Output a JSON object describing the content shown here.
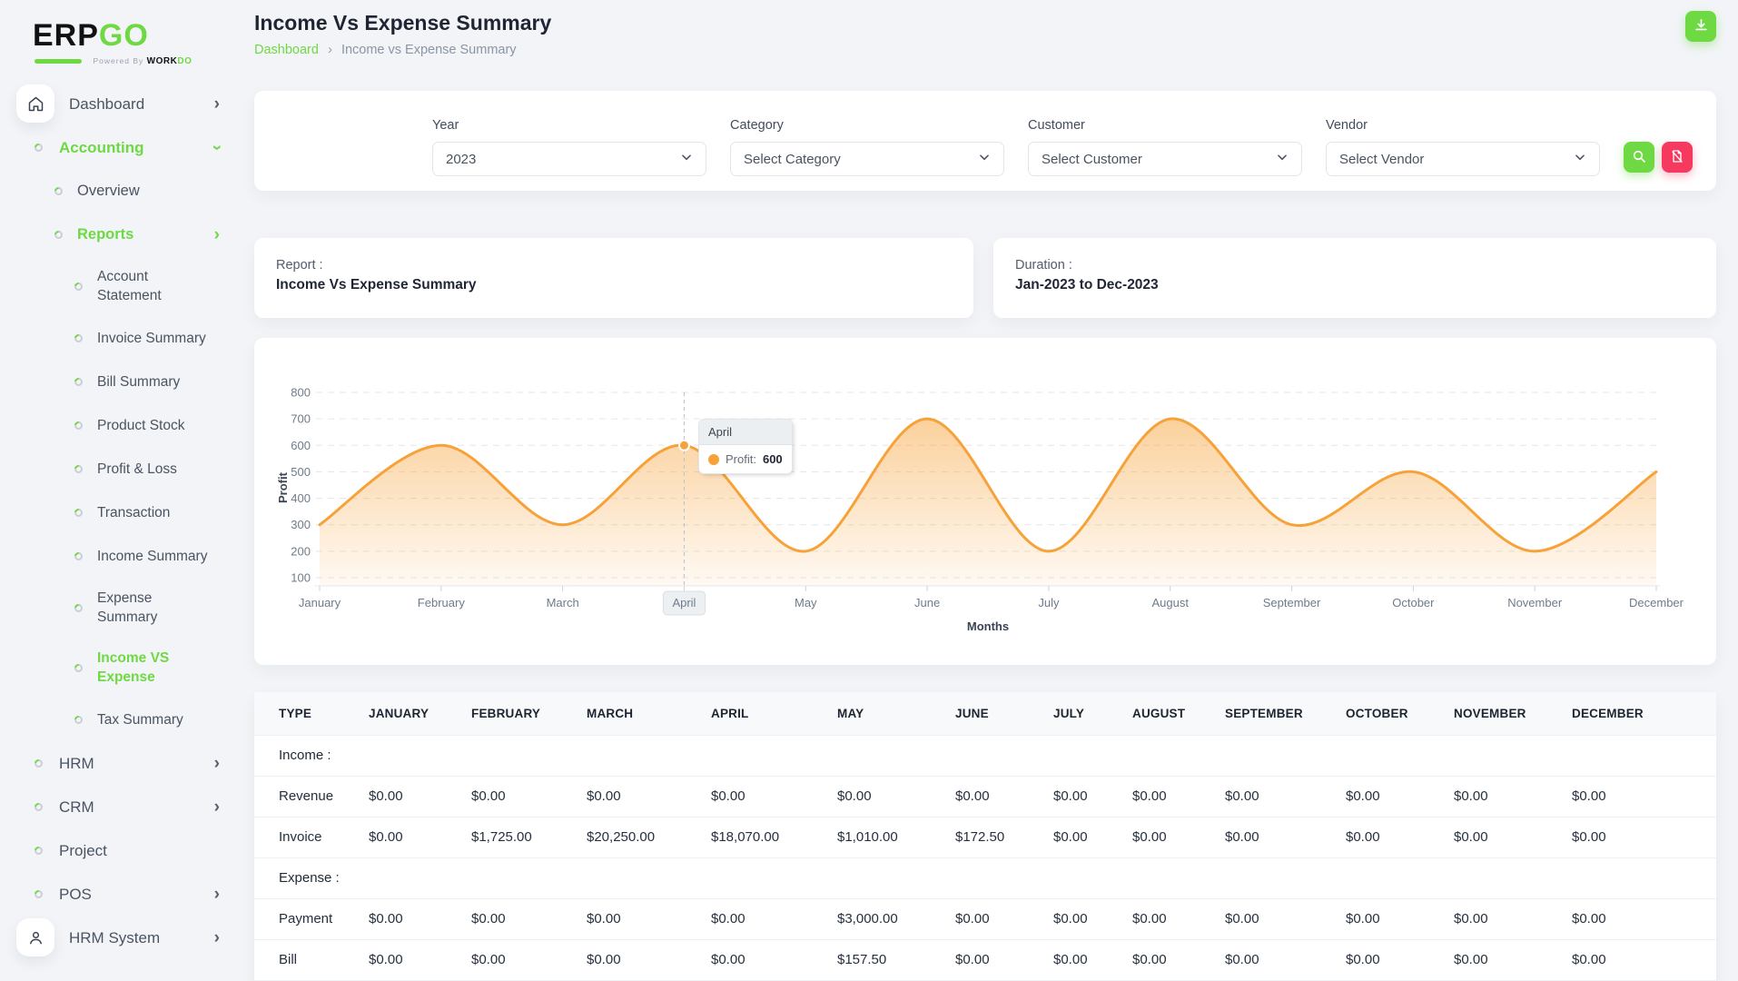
{
  "app": {
    "logo_part1": "ERP",
    "logo_part2": "GO",
    "powered_by": "Powered By",
    "powered_brand": "WORK",
    "powered_brand2": "DO"
  },
  "header": {
    "title": "Income Vs Expense Summary",
    "breadcrumb": [
      "Dashboard",
      "Income vs Expense Summary"
    ]
  },
  "icons": [
    "home-icon",
    "download-icon",
    "search-icon",
    "file-slash-icon",
    "user-icon",
    "chevron-right-icon",
    "chevron-down-icon"
  ],
  "sidebar": {
    "items": [
      {
        "label": "Dashboard",
        "level": 0,
        "icon": "home",
        "chevron": "right"
      },
      {
        "label": "Accounting",
        "level": 0,
        "bullet": true,
        "chevron": "down",
        "active": true
      },
      {
        "label": "Overview",
        "level": 1,
        "bullet": true
      },
      {
        "label": "Reports",
        "level": 1,
        "bullet": true,
        "chevron": "right",
        "active": true
      },
      {
        "label": "Account Statement",
        "level": 2,
        "bullet": true,
        "twoLine": true
      },
      {
        "label": "Invoice Summary",
        "level": 2,
        "bullet": true
      },
      {
        "label": "Bill Summary",
        "level": 2,
        "bullet": true
      },
      {
        "label": "Product Stock",
        "level": 2,
        "bullet": true
      },
      {
        "label": "Profit & Loss",
        "level": 2,
        "bullet": true
      },
      {
        "label": "Transaction",
        "level": 2,
        "bullet": true
      },
      {
        "label": "Income Summary",
        "level": 2,
        "bullet": true
      },
      {
        "label": "Expense Summary",
        "level": 2,
        "bullet": true,
        "twoLine": true
      },
      {
        "label": "Income VS Expense",
        "level": 2,
        "bullet": true,
        "twoLine": true,
        "active": true
      },
      {
        "label": "Tax Summary",
        "level": 2,
        "bullet": true
      },
      {
        "label": "HRM",
        "level": 0,
        "bullet": true,
        "chevron": "right"
      },
      {
        "label": "CRM",
        "level": 0,
        "bullet": true,
        "chevron": "right"
      },
      {
        "label": "Project",
        "level": 0,
        "bullet": true
      },
      {
        "label": "POS",
        "level": 0,
        "bullet": true,
        "chevron": "right"
      },
      {
        "label": "HRM System",
        "level": 0,
        "icon": "user",
        "chevron": "right"
      }
    ]
  },
  "filters": {
    "year": {
      "label": "Year",
      "value": "2023"
    },
    "category": {
      "label": "Category",
      "value": "Select Category"
    },
    "customer": {
      "label": "Customer",
      "value": "Select Customer"
    },
    "vendor": {
      "label": "Vendor",
      "value": "Select Vendor"
    }
  },
  "report_card": {
    "label": "Report :",
    "value": "Income Vs Expense Summary"
  },
  "duration_card": {
    "label": "Duration :",
    "value": "Jan-2023 to Dec-2023"
  },
  "chart_data": {
    "type": "area",
    "categories": [
      "January",
      "February",
      "March",
      "April",
      "May",
      "June",
      "July",
      "August",
      "September",
      "October",
      "November",
      "December"
    ],
    "series": [
      {
        "name": "Profit",
        "values": [
          300,
          600,
          300,
          600,
          200,
          700,
          200,
          700,
          300,
          500,
          200,
          500
        ]
      }
    ],
    "xlabel": "Months",
    "ylabel": "Profit",
    "ylim": [
      100,
      800
    ],
    "yticks": [
      800,
      700,
      600,
      500,
      400,
      300,
      200,
      100
    ],
    "grid": "dashed-horizontal",
    "legend": "none",
    "line_color": "#f7a239",
    "selected_point": {
      "category": "April",
      "index": 3,
      "series": "Profit",
      "value": "600"
    }
  },
  "table": {
    "columns": [
      "TYPE",
      "JANUARY",
      "FEBRUARY",
      "MARCH",
      "APRIL",
      "MAY",
      "JUNE",
      "JULY",
      "AUGUST",
      "SEPTEMBER",
      "OCTOBER",
      "NOVEMBER",
      "DECEMBER"
    ],
    "sections": [
      {
        "label": "Income :",
        "rows": [
          {
            "type": "Revenue",
            "values": [
              "$0.00",
              "$0.00",
              "$0.00",
              "$0.00",
              "$0.00",
              "$0.00",
              "$0.00",
              "$0.00",
              "$0.00",
              "$0.00",
              "$0.00",
              "$0.00"
            ]
          },
          {
            "type": "Invoice",
            "values": [
              "$0.00",
              "$1,725.00",
              "$20,250.00",
              "$18,070.00",
              "$1,010.00",
              "$172.50",
              "$0.00",
              "$0.00",
              "$0.00",
              "$0.00",
              "$0.00",
              "$0.00"
            ]
          }
        ]
      },
      {
        "label": "Expense :",
        "rows": [
          {
            "type": "Payment",
            "values": [
              "$0.00",
              "$0.00",
              "$0.00",
              "$0.00",
              "$3,000.00",
              "$0.00",
              "$0.00",
              "$0.00",
              "$0.00",
              "$0.00",
              "$0.00",
              "$0.00"
            ]
          },
          {
            "type": "Bill",
            "values": [
              "$0.00",
              "$0.00",
              "$0.00",
              "$0.00",
              "$157.50",
              "$0.00",
              "$0.00",
              "$0.00",
              "$0.00",
              "$0.00",
              "$0.00",
              "$0.00"
            ]
          }
        ]
      }
    ]
  }
}
